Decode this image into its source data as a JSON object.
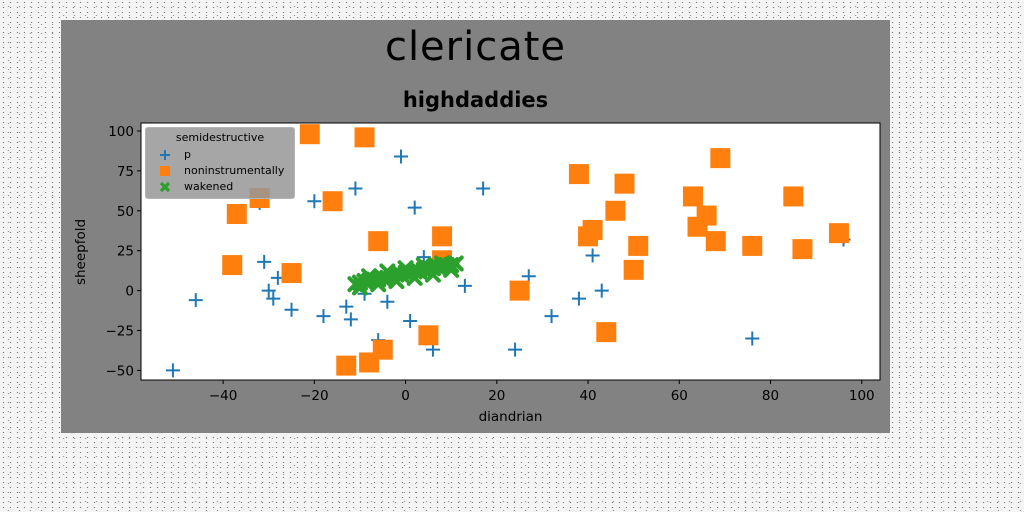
{
  "chart_data": {
    "type": "scatter",
    "suptitle": "clericate",
    "title": "highdaddies",
    "xlabel": "diandrian",
    "ylabel": "sheepfold",
    "xlim": [
      -58,
      104
    ],
    "ylim": [
      -56,
      105
    ],
    "xticks": [
      -40,
      -20,
      0,
      20,
      40,
      60,
      80,
      100
    ],
    "yticks": [
      -50,
      -25,
      0,
      25,
      50,
      75,
      100
    ],
    "grid": false,
    "legend": {
      "title": "semidestructive",
      "placement": "upper-left"
    },
    "series": [
      {
        "name": "p",
        "marker": "plus",
        "color": "#1f77b4",
        "points": [
          [
            -51,
            -50
          ],
          [
            -46,
            -6
          ],
          [
            -32,
            55
          ],
          [
            -31,
            18
          ],
          [
            -30,
            0
          ],
          [
            -29,
            -5
          ],
          [
            -28,
            8
          ],
          [
            -25,
            -12
          ],
          [
            -20,
            56
          ],
          [
            -18,
            -16
          ],
          [
            -13,
            -10
          ],
          [
            -12,
            -18
          ],
          [
            -11,
            64
          ],
          [
            -9,
            -2
          ],
          [
            -6,
            -31
          ],
          [
            -4,
            -7
          ],
          [
            -1,
            84
          ],
          [
            1,
            -19
          ],
          [
            2,
            52
          ],
          [
            4,
            21
          ],
          [
            6,
            -37
          ],
          [
            13,
            3
          ],
          [
            17,
            64
          ],
          [
            24,
            -37
          ],
          [
            27,
            9
          ],
          [
            32,
            -16
          ],
          [
            38,
            -5
          ],
          [
            41,
            22
          ],
          [
            43,
            0
          ],
          [
            76,
            -30
          ],
          [
            96,
            32
          ]
        ]
      },
      {
        "name": "noninstrumentally",
        "marker": "square",
        "color": "#ff7f0e",
        "points": [
          [
            -21,
            98
          ],
          [
            -9,
            96
          ],
          [
            -37,
            48
          ],
          [
            -32,
            58
          ],
          [
            -16,
            56
          ],
          [
            -38,
            16
          ],
          [
            -25,
            11
          ],
          [
            -6,
            31
          ],
          [
            8,
            34
          ],
          [
            8,
            19
          ],
          [
            5,
            -28
          ],
          [
            -5,
            -37
          ],
          [
            -8,
            -45
          ],
          [
            -13,
            -47
          ],
          [
            25,
            0
          ],
          [
            38,
            73
          ],
          [
            40,
            34
          ],
          [
            41,
            38
          ],
          [
            46,
            50
          ],
          [
            48,
            67
          ],
          [
            51,
            28
          ],
          [
            50,
            13
          ],
          [
            44,
            -26
          ],
          [
            63,
            59
          ],
          [
            64,
            40
          ],
          [
            66,
            47
          ],
          [
            68,
            31
          ],
          [
            69,
            83
          ],
          [
            76,
            28
          ],
          [
            85,
            59
          ],
          [
            87,
            26
          ],
          [
            95,
            36
          ]
        ]
      },
      {
        "name": "wakened",
        "marker": "x",
        "color": "#2ca02c",
        "points": [
          [
            -11,
            4
          ],
          [
            -10,
            5
          ],
          [
            -9,
            6
          ],
          [
            -8,
            6
          ],
          [
            -7,
            7
          ],
          [
            -6,
            7
          ],
          [
            -5,
            8
          ],
          [
            -4,
            8
          ],
          [
            -3,
            9
          ],
          [
            -2,
            10
          ],
          [
            -1,
            10
          ],
          [
            0,
            11
          ],
          [
            1,
            11
          ],
          [
            2,
            12
          ],
          [
            3,
            12
          ],
          [
            4,
            13
          ],
          [
            5,
            14
          ],
          [
            6,
            14
          ],
          [
            7,
            15
          ],
          [
            8,
            15
          ],
          [
            9,
            16
          ],
          [
            10,
            16
          ],
          [
            11,
            17
          ],
          [
            -10,
            2
          ],
          [
            -6,
            4
          ],
          [
            -2,
            6
          ],
          [
            2,
            8
          ],
          [
            6,
            10
          ],
          [
            10,
            13
          ],
          [
            -8,
            9
          ],
          [
            -4,
            12
          ],
          [
            0,
            14
          ],
          [
            4,
            16
          ],
          [
            8,
            17
          ]
        ]
      }
    ]
  }
}
